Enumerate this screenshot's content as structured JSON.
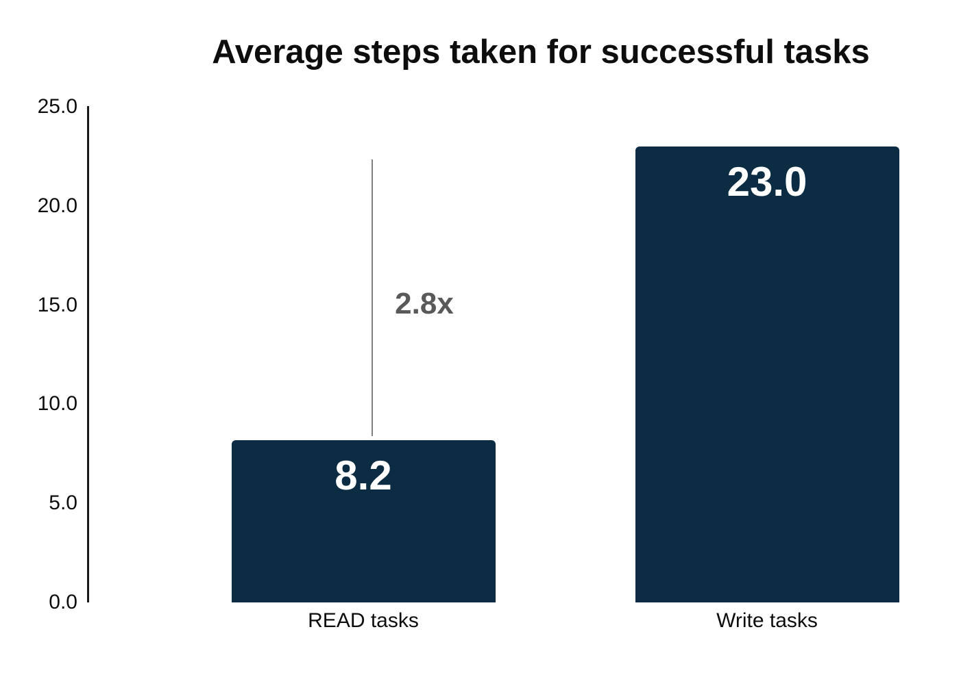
{
  "title": "Average steps taken for successful tasks",
  "chart_data": {
    "type": "bar",
    "title": "Average steps taken for successful tasks",
    "categories": [
      "READ tasks",
      "Write tasks"
    ],
    "values": [
      8.2,
      23.0
    ],
    "value_labels": [
      "8.2",
      "23.0"
    ],
    "xlabel": "",
    "ylabel": "",
    "ylim": [
      0,
      25
    ],
    "yticks": [
      0.0,
      5.0,
      10.0,
      15.0,
      20.0,
      25.0
    ],
    "ytick_labels": [
      "0.0",
      "5.0",
      "10.0",
      "15.0",
      "20.0",
      "25.0"
    ],
    "grid": false,
    "legend": false,
    "bar_color": "#0c2c44",
    "value_label_color": "#ffffff",
    "axis_color": "#1a1a1a",
    "annotation": {
      "label": "2.8x",
      "color": "#595959",
      "line_color": "#7f7f7f"
    }
  }
}
